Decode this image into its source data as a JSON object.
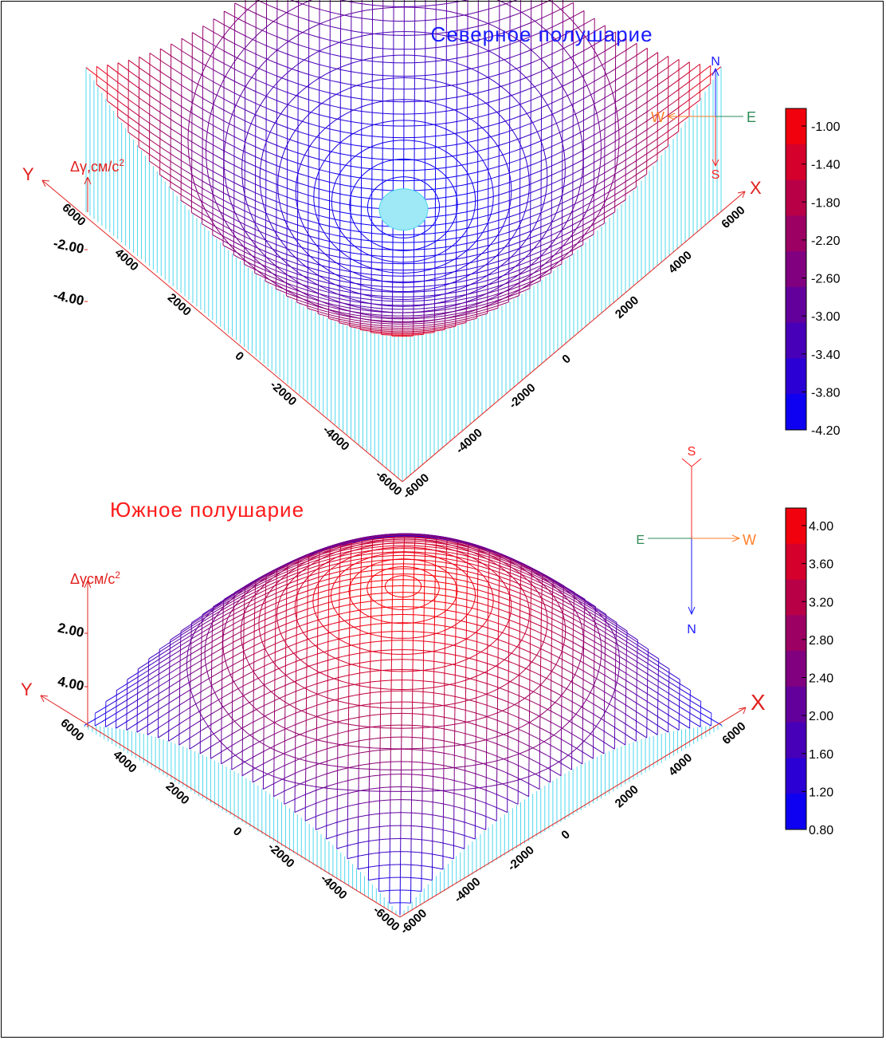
{
  "chart_data": [
    {
      "type": "surface3d",
      "title": "Северное полушарие",
      "z_label": "Δγ,см/с²",
      "x_axis_name": "X",
      "y_axis_name": "Y",
      "x_ticks": [
        "-6000",
        "-4000",
        "-2000",
        "0",
        "2000",
        "4000",
        "6000"
      ],
      "y_ticks": [
        "-6000",
        "-4000",
        "-2000",
        "0",
        "2000",
        "4000",
        "6000"
      ],
      "x_range": [
        -6000,
        6000
      ],
      "y_range": [
        -6000,
        6000
      ],
      "z_ticks": [
        "-2.00",
        "-4.00"
      ],
      "zlim": [
        -4.2,
        -1.0
      ],
      "surface": {
        "center_z": -4.15,
        "corner_z": -1.05,
        "side_mid_z": -2.4,
        "shape": "bowl",
        "flat_cap_radius": 650
      },
      "colorbar": {
        "labels": [
          "-1.00",
          "-1.40",
          "-1.80",
          "-2.20",
          "-2.60",
          "-3.00",
          "-3.40",
          "-3.80",
          "-4.20"
        ],
        "min": -4.2,
        "max": -1.0,
        "min_color": "#0000ff",
        "max_color": "#ff0000"
      },
      "compass": {
        "top": "N",
        "bottom": "S",
        "left": "W",
        "right": "E"
      }
    },
    {
      "type": "surface3d",
      "title": "Южное полушарие",
      "z_label": "Δγсм/с²",
      "x_axis_name": "X",
      "y_axis_name": "Y",
      "x_ticks": [
        "-6000",
        "-4000",
        "-2000",
        "0",
        "2000",
        "4000",
        "6000"
      ],
      "y_ticks": [
        "-6000",
        "-4000",
        "-2000",
        "0",
        "2000",
        "4000",
        "6000"
      ],
      "x_range": [
        -6000,
        6000
      ],
      "y_range": [
        -6000,
        6000
      ],
      "z_ticks": [
        "2.00",
        "4.00"
      ],
      "zlim": [
        0.8,
        4.2
      ],
      "surface": {
        "center_z": 4.15,
        "corner_z": 0.85,
        "side_mid_z": 1.9,
        "shape": "dome"
      },
      "colorbar": {
        "labels": [
          "4.00",
          "3.60",
          "3.20",
          "2.80",
          "2.40",
          "2.00",
          "1.60",
          "1.20",
          "0.80"
        ],
        "min": 0.8,
        "max": 4.2,
        "min_color": "#0000ff",
        "max_color": "#ff0000"
      },
      "compass": {
        "top": "S",
        "bottom": "N",
        "left": "E",
        "right": "W"
      }
    }
  ],
  "colors": {
    "axis": "#e0201e",
    "curtain": "#4fd8ee",
    "title_north": "#1a1aff",
    "title_south": "#ff1a1a",
    "compass_n": "#1a1aff",
    "compass_s": "#ff2020",
    "compass_e": "#2e8b57",
    "compass_w": "#ff7f27"
  }
}
